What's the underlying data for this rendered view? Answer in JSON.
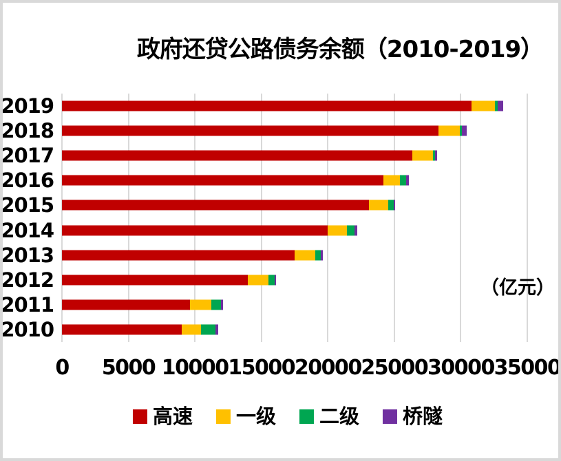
{
  "title": "政府还贷公路债务余额（2010-2019）",
  "unit_label": "（亿元）",
  "frame": {
    "border_color": "#d9d9d9",
    "background": "#ffffff",
    "gridline_color": "#d9d9d9",
    "text_color": "#000000"
  },
  "chart_data": {
    "type": "bar",
    "orientation": "horizontal",
    "stacked": true,
    "title": "政府还贷公路债务余额（2010-2019）",
    "unit": "亿元",
    "categories": [
      "2019",
      "2018",
      "2017",
      "2016",
      "2015",
      "2014",
      "2013",
      "2012",
      "2011",
      "2010"
    ],
    "series": [
      {
        "name": "高速",
        "key": "expressway",
        "color": "#c00000",
        "values": [
          30800,
          28320,
          26340,
          24180,
          23090,
          19980,
          17480,
          13990,
          9620,
          9015
        ]
      },
      {
        "name": "一级",
        "key": "first-class",
        "color": "#ffc000",
        "values": [
          1760,
          1585,
          1590,
          1260,
          1430,
          1465,
          1555,
          1540,
          1640,
          1465
        ]
      },
      {
        "name": "二级",
        "key": "second-class",
        "color": "#00a651",
        "values": [
          190,
          190,
          140,
          465,
          415,
          570,
          435,
          445,
          695,
          1090
        ]
      },
      {
        "name": "桥隧",
        "key": "bridge-tunnel",
        "color": "#7030a0",
        "values": [
          430,
          325,
          170,
          170,
          140,
          205,
          170,
          125,
          170,
          205
        ]
      }
    ],
    "x_ticks": [
      {
        "value": 0,
        "label": "0"
      },
      {
        "value": 5000,
        "label": "5000"
      },
      {
        "value": 10000,
        "label": "10000"
      },
      {
        "value": 15000,
        "label": "15000"
      },
      {
        "value": 20000,
        "label": "20000"
      },
      {
        "value": 25000,
        "label": "25000"
      },
      {
        "value": 30000,
        "label": "30000"
      },
      {
        "value": 35000,
        "label": "35000"
      }
    ],
    "xlim": [
      0,
      35000
    ],
    "grid": "vertical",
    "legend_position": "bottom"
  }
}
